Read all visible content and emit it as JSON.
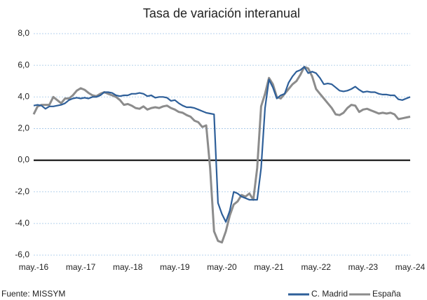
{
  "chart_data": {
    "type": "line",
    "title": "Tasa de variación interanual",
    "source": "Fuente: MISSYM",
    "categories": [
      "may.-16",
      null,
      null,
      null,
      null,
      null,
      null,
      null,
      null,
      null,
      null,
      null,
      "may.-17",
      null,
      null,
      null,
      null,
      null,
      null,
      null,
      null,
      null,
      null,
      null,
      "may.-18",
      null,
      null,
      null,
      null,
      null,
      null,
      null,
      null,
      null,
      null,
      null,
      "may.-19",
      null,
      null,
      null,
      null,
      null,
      null,
      null,
      null,
      null,
      null,
      null,
      "may.-20",
      null,
      null,
      null,
      null,
      null,
      null,
      null,
      null,
      null,
      null,
      null,
      "may.-21",
      null,
      null,
      null,
      null,
      null,
      null,
      null,
      null,
      null,
      null,
      null,
      "may.-22",
      null,
      null,
      null,
      null,
      null,
      null,
      null,
      null,
      null,
      null,
      null,
      "may.-23",
      null,
      null,
      null,
      null,
      null,
      null,
      null,
      null,
      null,
      null,
      null,
      "may.-24"
    ],
    "series": [
      {
        "name": "C. Madrid",
        "color": "#2e5f99",
        "values": [
          3.45,
          3.5,
          3.45,
          3.25,
          3.4,
          3.4,
          3.45,
          3.5,
          3.6,
          3.8,
          3.9,
          3.95,
          3.9,
          3.95,
          3.9,
          4.0,
          4.0,
          4.1,
          4.3,
          4.3,
          4.25,
          4.1,
          4.05,
          4.1,
          4.1,
          4.2,
          4.2,
          4.25,
          4.2,
          4.05,
          4.1,
          3.95,
          4.0,
          4.0,
          3.95,
          3.75,
          3.8,
          3.6,
          3.45,
          3.35,
          3.35,
          3.3,
          3.2,
          3.1,
          3.0,
          2.95,
          2.9,
          -2.7,
          -3.4,
          -3.9,
          -3.2,
          -2.0,
          -2.1,
          -2.3,
          -2.4,
          -2.5,
          -2.5,
          -2.5,
          -0.5,
          3.3,
          5.1,
          4.6,
          3.9,
          4.1,
          4.2,
          4.9,
          5.3,
          5.6,
          5.7,
          5.9,
          5.5,
          5.6,
          5.5,
          5.2,
          4.8,
          4.85,
          4.8,
          4.6,
          4.4,
          4.35,
          4.4,
          4.5,
          4.65,
          4.45,
          4.3,
          4.35,
          4.3,
          4.3,
          4.2,
          4.15,
          4.15,
          4.1,
          4.1,
          3.85,
          3.8,
          3.9,
          4.0
        ]
      },
      {
        "name": "España",
        "color": "#8c8c8c",
        "values": [
          2.9,
          3.4,
          3.5,
          3.5,
          3.5,
          4.0,
          3.8,
          3.6,
          3.9,
          3.9,
          4.1,
          4.4,
          4.55,
          4.45,
          4.25,
          4.1,
          4.05,
          4.2,
          4.3,
          4.2,
          4.1,
          4.0,
          3.8,
          3.5,
          3.55,
          3.45,
          3.3,
          3.25,
          3.4,
          3.2,
          3.3,
          3.35,
          3.3,
          3.4,
          3.45,
          3.3,
          3.2,
          3.05,
          3.0,
          2.85,
          2.75,
          2.5,
          2.4,
          2.1,
          2.2,
          -0.5,
          -4.5,
          -5.1,
          -5.2,
          -4.5,
          -3.5,
          -2.8,
          -2.6,
          -2.2,
          -2.3,
          -2.1,
          -2.5,
          -0.5,
          3.4,
          4.2,
          5.2,
          4.8,
          4.0,
          3.9,
          4.2,
          4.5,
          4.8,
          5.0,
          5.4,
          5.9,
          5.8,
          5.3,
          4.5,
          4.2,
          3.9,
          3.6,
          3.3,
          2.9,
          2.85,
          3.0,
          3.3,
          3.5,
          3.45,
          3.05,
          3.2,
          3.25,
          3.15,
          3.05,
          2.95,
          3.0,
          2.95,
          3.0,
          2.9,
          2.6,
          2.65,
          2.7,
          2.75
        ]
      }
    ],
    "ylim": [
      -6,
      8
    ],
    "yticks": [
      {
        "value": -6,
        "label": "-6,0"
      },
      {
        "value": -4,
        "label": "-4,0"
      },
      {
        "value": -2,
        "label": "-2,0"
      },
      {
        "value": 0,
        "label": "0,0"
      },
      {
        "value": 2,
        "label": "2,0"
      },
      {
        "value": 4,
        "label": "4,0"
      },
      {
        "value": 6,
        "label": "6,0"
      },
      {
        "value": 8,
        "label": "8,0"
      }
    ],
    "grid": true,
    "legend": "bottom-right"
  }
}
